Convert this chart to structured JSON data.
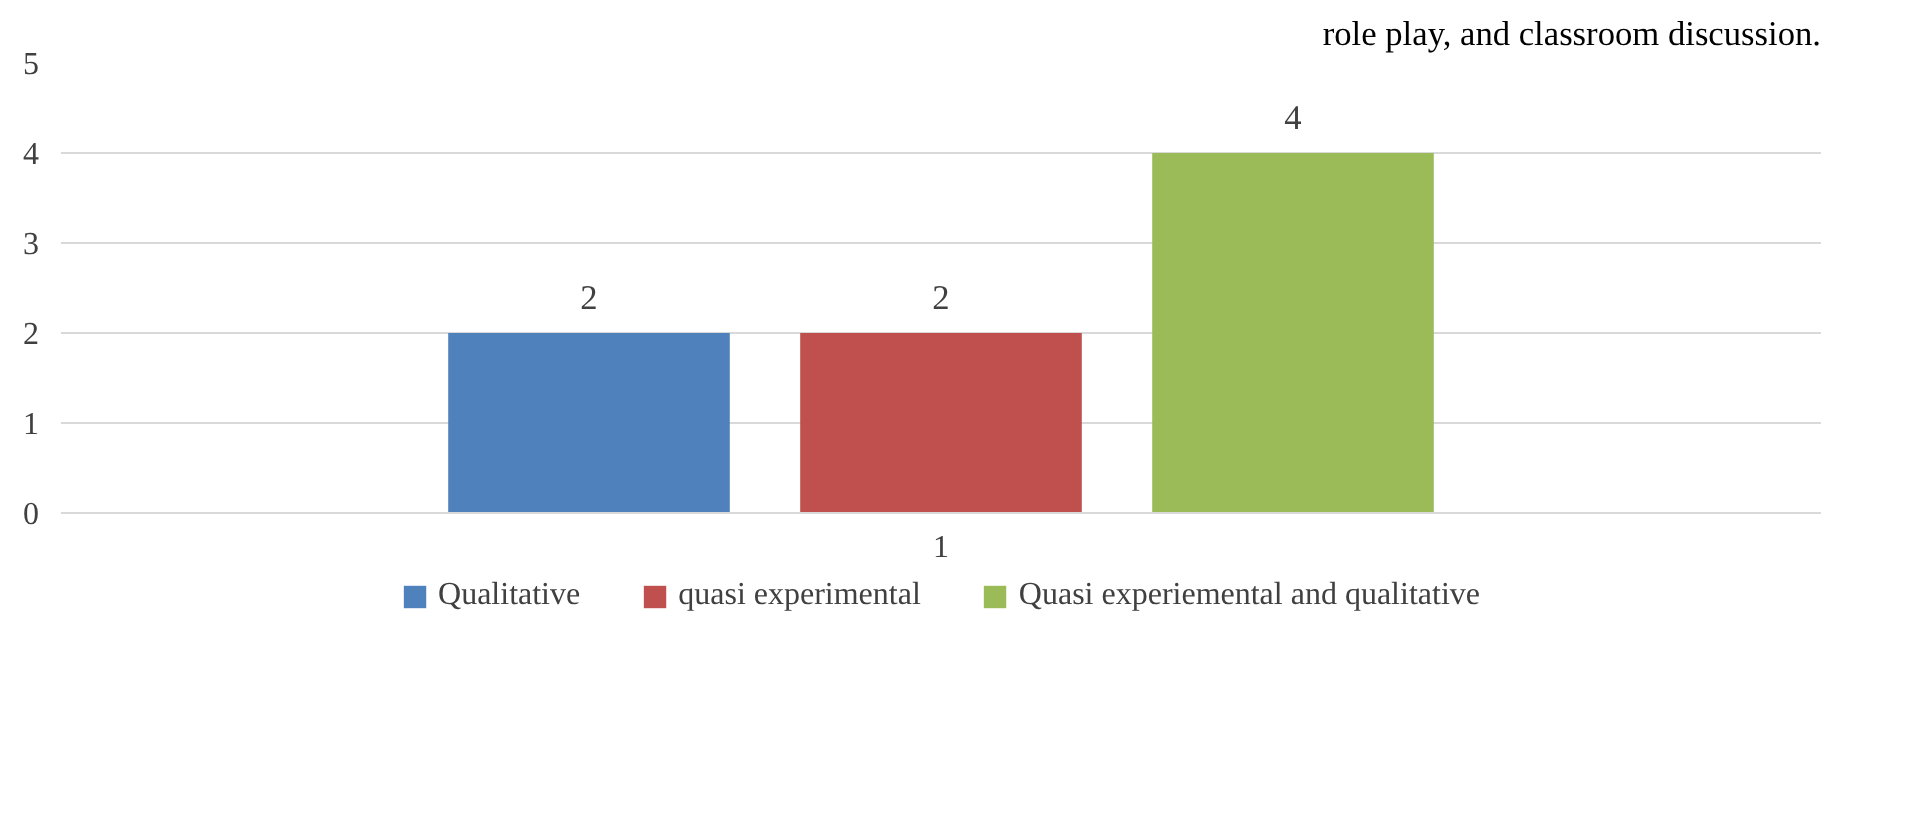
{
  "chart_data": {
    "type": "bar",
    "categories": [
      "1"
    ],
    "series": [
      {
        "name": "Qualitative",
        "color": "#4f81bd",
        "values": [
          2
        ]
      },
      {
        "name": "quasi experimental",
        "color": "#c0504d",
        "values": [
          2
        ]
      },
      {
        "name": "Quasi experiemental and qualitative",
        "color": "#9bbb59",
        "values": [
          4
        ]
      }
    ],
    "ylim": [
      0,
      5
    ],
    "yticks": [
      0,
      1,
      2,
      3,
      4,
      5
    ],
    "grid": "y",
    "legend": "bottom",
    "data_labels": true,
    "annotations": [
      "role play, and classroom discussion."
    ]
  }
}
